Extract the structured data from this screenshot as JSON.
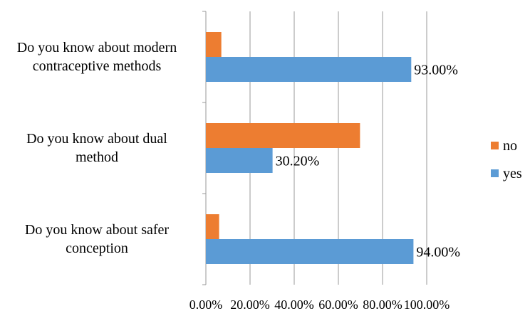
{
  "chart_data": {
    "type": "bar",
    "orientation": "horizontal",
    "title": "",
    "xlabel": "",
    "ylabel": "",
    "xlim": [
      0,
      100
    ],
    "grid": true,
    "legend_position": "right",
    "categories": [
      {
        "line1": "Do you know about modern",
        "line2": "contraceptive methods"
      },
      {
        "line1": "Do you know about dual",
        "line2": "method"
      },
      {
        "line1": "Do you know about safer",
        "line2": "conception"
      }
    ],
    "ticks": [
      "0.00%",
      "20.00%",
      "40.00%",
      "60.00%",
      "80.00%",
      "100.00%"
    ],
    "tick_values": [
      0,
      20,
      40,
      60,
      80,
      100
    ],
    "series": [
      {
        "name": "no",
        "color": "#ed7d31",
        "values": [
          7.0,
          69.8,
          6.0
        ],
        "labels": [
          "",
          "",
          ""
        ]
      },
      {
        "name": "yes",
        "color": "#5b9bd5",
        "values": [
          93.0,
          30.2,
          94.0
        ],
        "labels": [
          "93.00%",
          "30.20%",
          "94.00%"
        ]
      }
    ],
    "legend": [
      {
        "name": "no",
        "color": "#ed7d31"
      },
      {
        "name": "yes",
        "color": "#5b9bd5"
      }
    ]
  }
}
